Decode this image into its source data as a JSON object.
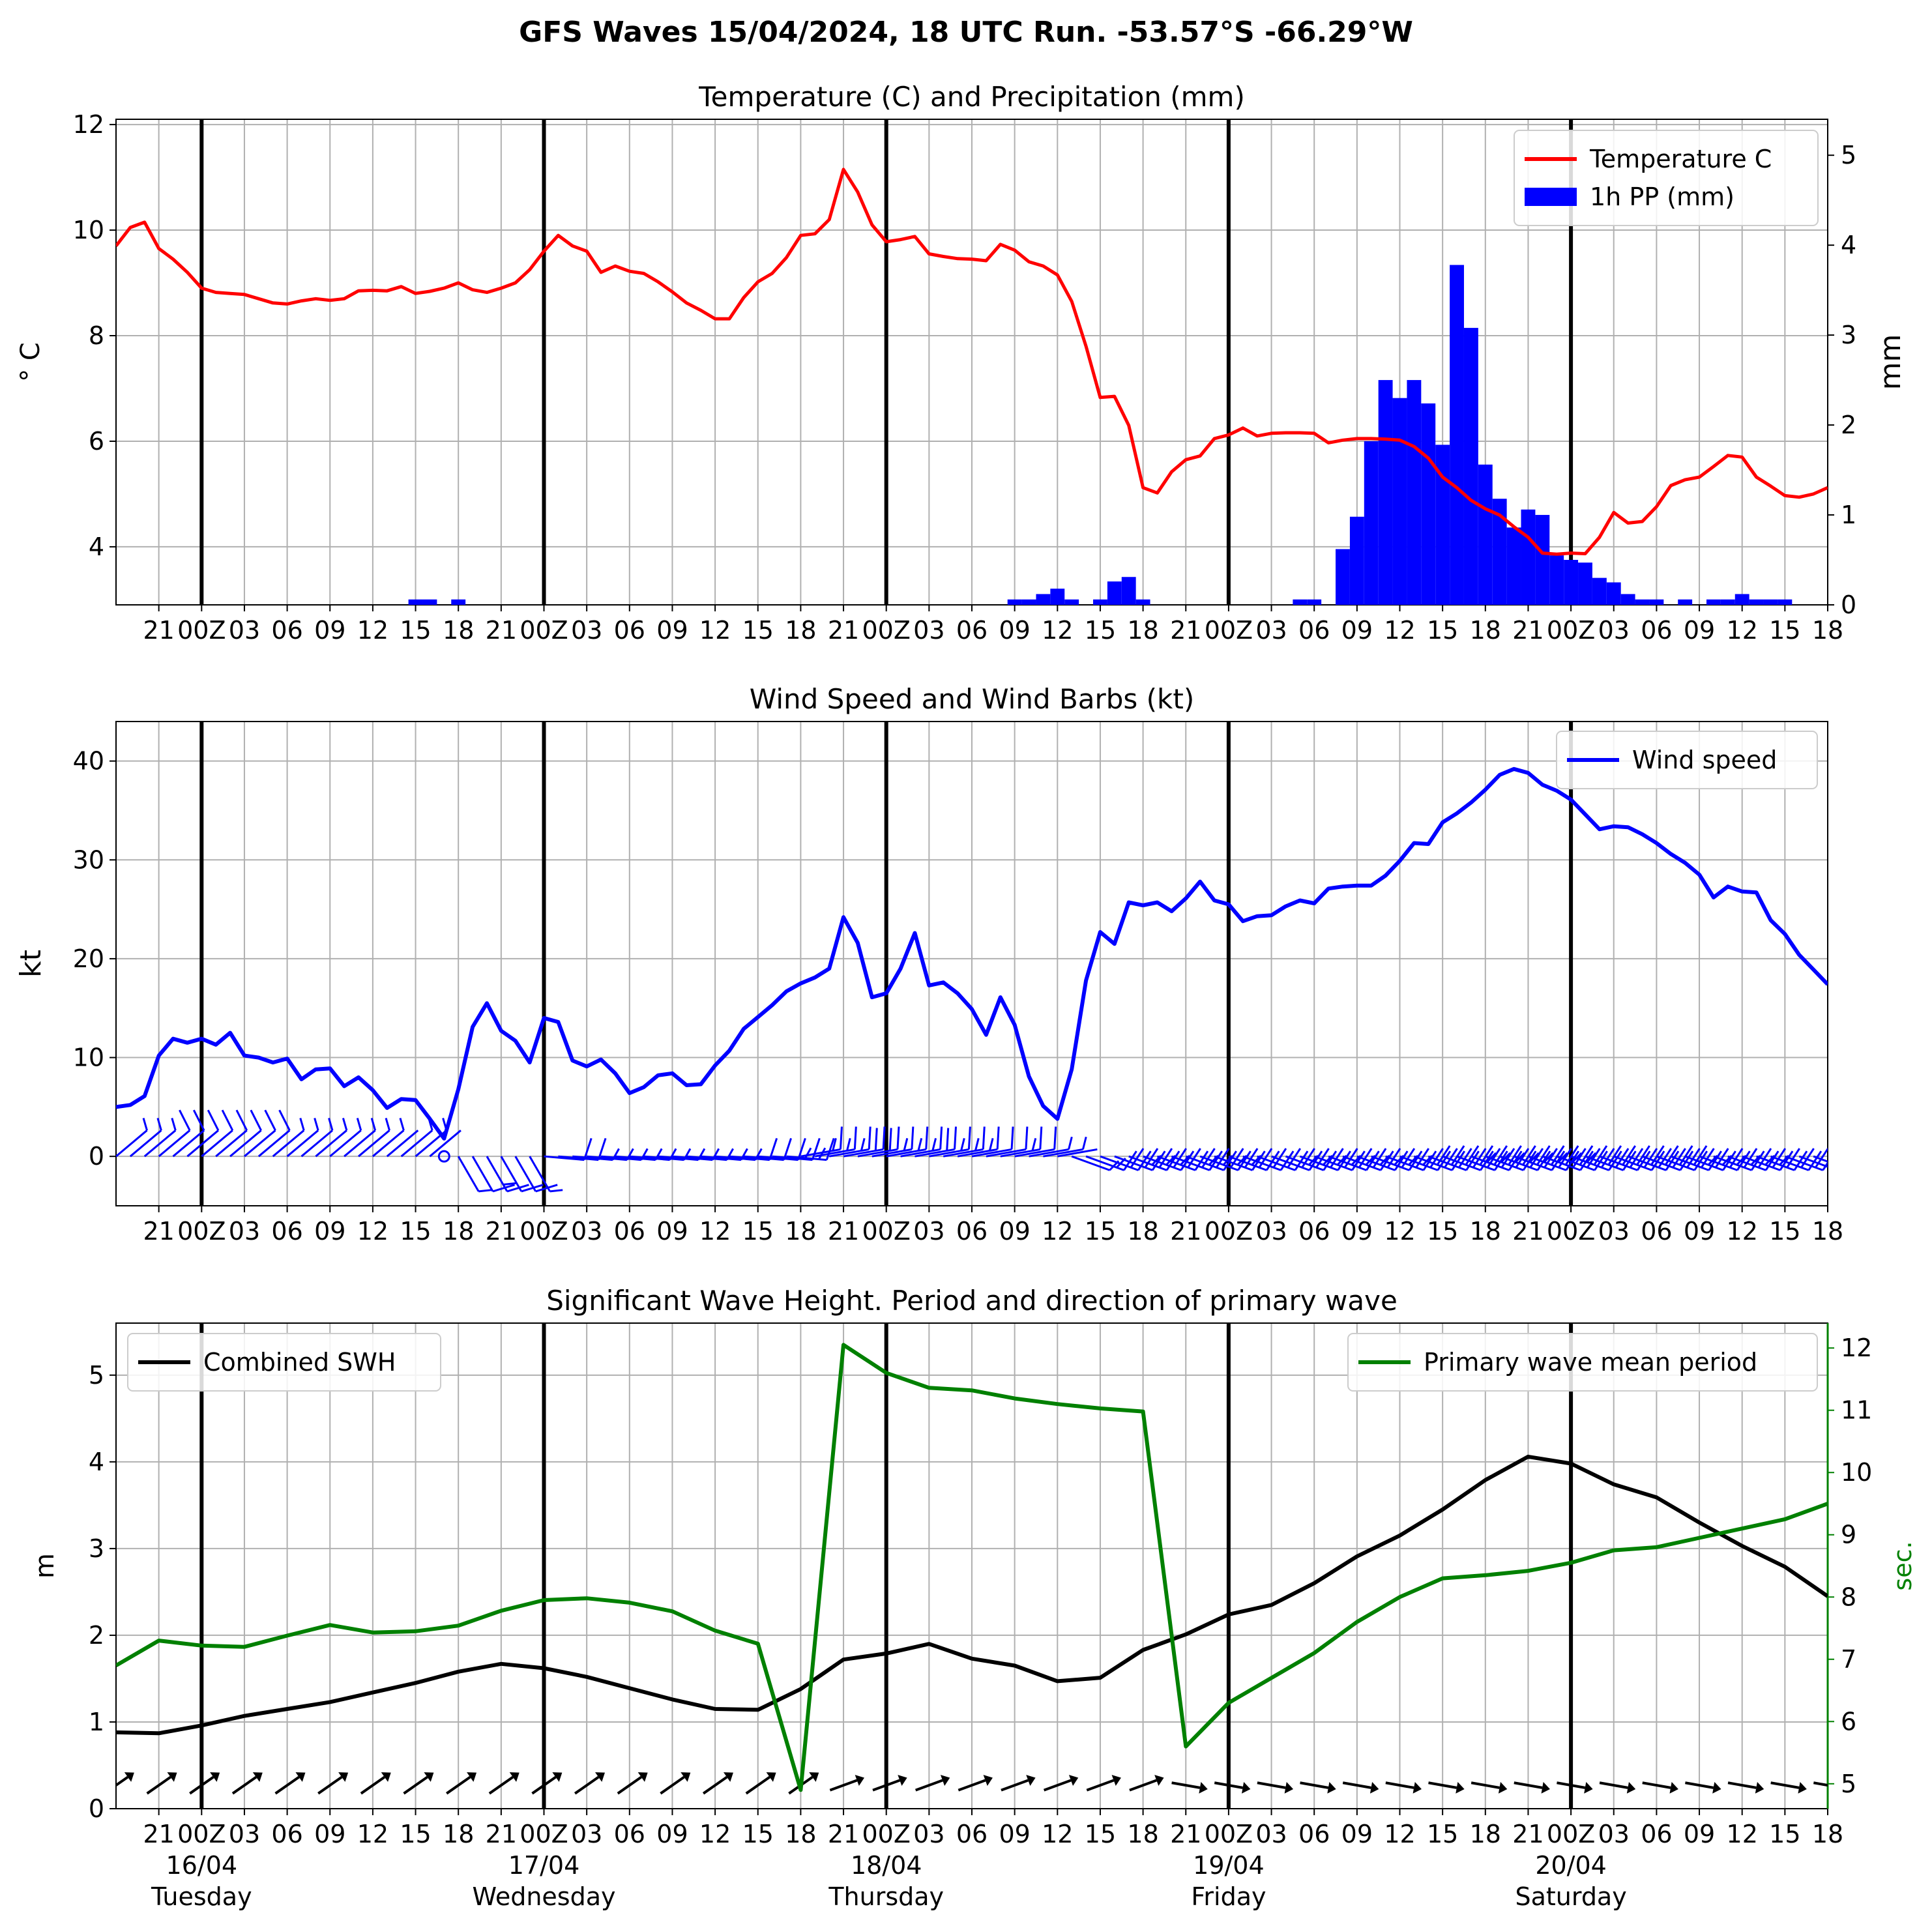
{
  "suptitle": "GFS Waves 15/04/2024, 18 UTC Run. -53.57°S -66.29°W",
  "colors": {
    "temperature": "#ff0000",
    "precip": "#0000ff",
    "wind": "#0000ff",
    "swh": "#000000",
    "period": "#008000",
    "grid": "#b0b0b0"
  },
  "time_axis": {
    "start_hour": 18,
    "end_hour": 138,
    "tick_labels": [
      "21",
      "00Z",
      "03",
      "06",
      "09",
      "12",
      "15",
      "18",
      "21",
      "00Z",
      "03",
      "06",
      "09",
      "12",
      "15",
      "18",
      "21",
      "00Z",
      "03",
      "06",
      "09",
      "12",
      "15",
      "18",
      "21",
      "00Z",
      "03",
      "06",
      "09",
      "12",
      "15",
      "18",
      "21",
      "00Z",
      "03",
      "06",
      "09",
      "12",
      "15",
      "18"
    ],
    "day_labels": [
      {
        "date": "16/04",
        "weekday": "Tuesday"
      },
      {
        "date": "17/04",
        "weekday": "Wednesday"
      },
      {
        "date": "18/04",
        "weekday": "Thursday"
      },
      {
        "date": "19/04",
        "weekday": "Friday"
      },
      {
        "date": "20/04",
        "weekday": "Saturday"
      }
    ]
  },
  "chart_data": [
    {
      "type": "line",
      "title": "Temperature (C) and Precipitation (mm)",
      "ylabel": "° C",
      "ylabel_right": "mm",
      "ylim": [
        2.9,
        12.1
      ],
      "ylim_right": [
        0,
        5.4
      ],
      "yticks": [
        4,
        6,
        8,
        10,
        12
      ],
      "yticks_right": [
        0,
        1,
        2,
        3,
        4,
        5
      ],
      "legend": "upper right",
      "legend_labels": [
        "Temperature C",
        "1h PP (mm)"
      ],
      "temperature": {
        "name": "Temperature C",
        "x_start": 18,
        "step": 1,
        "values": [
          9.7,
          10.05,
          10.15,
          9.65,
          9.45,
          9.2,
          8.9,
          8.82,
          8.8,
          8.78,
          8.7,
          8.62,
          8.6,
          8.66,
          8.7,
          8.67,
          8.7,
          8.85,
          8.86,
          8.85,
          8.93,
          8.8,
          8.84,
          8.9,
          9.0,
          8.87,
          8.82,
          8.9,
          9.0,
          9.25,
          9.6,
          9.9,
          9.7,
          9.6,
          9.2,
          9.32,
          9.22,
          9.18,
          9.02,
          8.83,
          8.62,
          8.48,
          8.32,
          8.32,
          8.72,
          9.02,
          9.18,
          9.48,
          9.9,
          9.93,
          10.2,
          11.15,
          10.72,
          10.1,
          9.78,
          9.82,
          9.88,
          9.55,
          9.5,
          9.46,
          9.45,
          9.42,
          9.73,
          9.62,
          9.4,
          9.32,
          9.15,
          8.65,
          7.8,
          6.83,
          6.85,
          6.3,
          5.12,
          5.02,
          5.42,
          5.65,
          5.72,
          6.05,
          6.12,
          6.25,
          6.1,
          6.15,
          6.16,
          6.16,
          6.15,
          5.97,
          6.02,
          6.05,
          6.05,
          6.04,
          6.02,
          5.9,
          5.68,
          5.32,
          5.12,
          4.88,
          4.72,
          4.6,
          4.38,
          4.18,
          3.88,
          3.86,
          3.88,
          3.87,
          4.18,
          4.65,
          4.45,
          4.48,
          4.76,
          5.16,
          5.27,
          5.32,
          5.52,
          5.73,
          5.7,
          5.32,
          5.15,
          4.97,
          4.94,
          5.0,
          5.12
        ]
      },
      "precip": {
        "name": "1h PP (mm)",
        "x_start": 18,
        "step": 1,
        "values": [
          0,
          0,
          0,
          0,
          0,
          0,
          0,
          0,
          0,
          0,
          0,
          0,
          0,
          0,
          0,
          0,
          0,
          0,
          0,
          0,
          0,
          0.06,
          0.06,
          0,
          0.06,
          0,
          0,
          0,
          0,
          0,
          0,
          0,
          0,
          0,
          0,
          0,
          0,
          0,
          0,
          0,
          0,
          0,
          0,
          0,
          0,
          0,
          0,
          0,
          0,
          0,
          0,
          0,
          0,
          0,
          0,
          0,
          0,
          0,
          0,
          0,
          0,
          0,
          0,
          0.06,
          0.06,
          0.12,
          0.18,
          0.06,
          0,
          0.06,
          0.26,
          0.31,
          0.06,
          0,
          0,
          0,
          0,
          0,
          0,
          0,
          0,
          0,
          0,
          0.06,
          0.06,
          0,
          0.62,
          0.98,
          1.82,
          2.5,
          2.3,
          2.5,
          2.24,
          1.78,
          3.78,
          3.08,
          1.56,
          1.18,
          0.86,
          1.06,
          1.0,
          0.55,
          0.5,
          0.47,
          0.3,
          0.25,
          0.12,
          0.06,
          0.06,
          0,
          0.06,
          0,
          0.06,
          0.06,
          0.12,
          0.06,
          0.06,
          0.06,
          0,
          0,
          0,
          0
        ]
      }
    },
    {
      "type": "line",
      "title": "Wind Speed and Wind Barbs (kt)",
      "ylabel": "kt",
      "ylim": [
        -5,
        44
      ],
      "yticks": [
        0,
        10,
        20,
        30,
        40
      ],
      "legend": "upper right",
      "legend_labels": [
        "Wind speed"
      ],
      "wind_speed": {
        "name": "Wind speed",
        "x_start": 18,
        "step": 1,
        "values": [
          5.0,
          5.2,
          6.1,
          10.2,
          11.9,
          11.5,
          11.9,
          11.3,
          12.5,
          10.2,
          10.0,
          9.5,
          9.9,
          7.8,
          8.8,
          8.9,
          7.1,
          8.0,
          6.7,
          4.9,
          5.8,
          5.7,
          3.8,
          1.8,
          6.8,
          13.1,
          15.5,
          12.7,
          11.7,
          9.5,
          14.0,
          13.6,
          9.7,
          9.1,
          9.8,
          8.4,
          6.4,
          7.0,
          8.2,
          8.4,
          7.2,
          7.3,
          9.2,
          10.7,
          12.9,
          14.1,
          15.3,
          16.7,
          17.5,
          18.1,
          19.0,
          24.2,
          21.6,
          16.1,
          16.5,
          19.0,
          22.6,
          17.3,
          17.6,
          16.5,
          14.9,
          12.3,
          16.1,
          13.3,
          8.1,
          5.1,
          3.8,
          8.8,
          17.8,
          22.7,
          21.5,
          25.7,
          25.4,
          25.7,
          24.8,
          26.1,
          27.8,
          25.9,
          25.5,
          23.8,
          24.3,
          24.4,
          25.3,
          25.9,
          25.6,
          27.1,
          27.3,
          27.4,
          27.4,
          28.4,
          29.9,
          31.7,
          31.6,
          33.8,
          34.7,
          35.8,
          37.1,
          38.6,
          39.2,
          38.8,
          37.6,
          37.0,
          36.1,
          34.6,
          33.1,
          33.4,
          33.3,
          32.6,
          31.7,
          30.6,
          29.7,
          28.5,
          26.2,
          27.3,
          26.8,
          26.7,
          23.9,
          22.5,
          20.4,
          18.9,
          17.4
        ]
      },
      "barb_directions_deg": [
        {
          "from_hour": 18,
          "to_hour": 40,
          "deg": 230
        },
        {
          "from_hour": 41,
          "to_hour": 47,
          "deg": 330
        },
        {
          "from_hour": 48,
          "to_hour": 65,
          "deg": 275
        },
        {
          "from_hour": 66,
          "to_hour": 84,
          "deg": 260
        },
        {
          "from_hour": 85,
          "to_hour": 138,
          "deg": 290
        }
      ]
    },
    {
      "type": "line",
      "title": "Significant Wave Height. Period and direction of primary wave",
      "ylabel": "m",
      "ylabel_right": "sec.",
      "ylim": [
        0,
        5.6
      ],
      "ylim_right": [
        4.6,
        12.4
      ],
      "yticks": [
        0,
        1,
        2,
        3,
        4,
        5
      ],
      "yticks_right": [
        5,
        6,
        7,
        8,
        9,
        10,
        11,
        12
      ],
      "legend_left_labels": [
        "Combined SWH"
      ],
      "legend_right_labels": [
        "Primary wave mean period"
      ],
      "swh": {
        "name": "Combined SWH",
        "x_start": 18,
        "step": 3,
        "values": [
          0.88,
          0.87,
          0.96,
          1.07,
          1.15,
          1.23,
          1.34,
          1.45,
          1.58,
          1.67,
          1.62,
          1.52,
          1.39,
          1.26,
          1.15,
          1.14,
          1.38,
          1.72,
          1.79,
          1.9,
          1.73,
          1.65,
          1.47,
          1.51,
          1.83,
          2.01,
          2.24,
          2.35,
          2.6,
          2.91,
          3.15,
          3.45,
          3.79,
          4.06,
          3.98,
          3.74,
          3.59,
          3.3,
          3.03,
          2.79,
          2.45
        ]
      },
      "period": {
        "name": "Primary wave mean period",
        "x_start": 18,
        "step": 3,
        "values": [
          6.9,
          7.3,
          7.22,
          7.2,
          7.38,
          7.55,
          7.43,
          7.45,
          7.54,
          7.78,
          7.95,
          7.98,
          7.91,
          7.77,
          7.46,
          7.25,
          4.9,
          12.05,
          11.6,
          11.36,
          11.32,
          11.19,
          11.1,
          11.03,
          10.98,
          5.6,
          6.3,
          6.7,
          7.1,
          7.6,
          8.0,
          8.3,
          8.35,
          8.42,
          8.55,
          8.75,
          8.8,
          8.95,
          9.1,
          9.25,
          9.5
        ]
      },
      "wave_direction_deg": [
        {
          "from_hour": 18,
          "to_hour": 66,
          "deg": 235
        },
        {
          "from_hour": 69,
          "to_hour": 90,
          "deg": 250
        },
        {
          "from_hour": 93,
          "to_hour": 138,
          "deg": 280
        }
      ]
    }
  ]
}
